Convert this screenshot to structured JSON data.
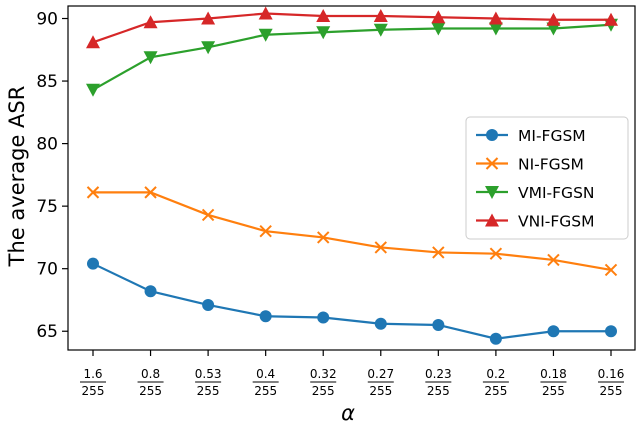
{
  "chart_data": {
    "type": "line",
    "xlabel": "α",
    "ylabel": "The average ASR",
    "categories": [
      {
        "num": "1.6",
        "den": "255"
      },
      {
        "num": "0.8",
        "den": "255"
      },
      {
        "num": "0.53",
        "den": "255"
      },
      {
        "num": "0.4",
        "den": "255"
      },
      {
        "num": "0.32",
        "den": "255"
      },
      {
        "num": "0.27",
        "den": "255"
      },
      {
        "num": "0.23",
        "den": "255"
      },
      {
        "num": "0.2",
        "den": "255"
      },
      {
        "num": "0.18",
        "den": "255"
      },
      {
        "num": "0.16",
        "den": "255"
      }
    ],
    "ylim": [
      63.5,
      91.0
    ],
    "yticks": [
      65,
      70,
      75,
      80,
      85,
      90
    ],
    "grid": false,
    "legend_position": "center-right",
    "series": [
      {
        "name": "MI-FGSM",
        "color": "#1f77b4",
        "marker": "circle",
        "values": [
          70.4,
          68.2,
          67.1,
          66.2,
          66.1,
          65.6,
          65.5,
          64.4,
          65.0,
          65.0
        ]
      },
      {
        "name": "NI-FGSM",
        "color": "#ff7f0e",
        "marker": "x",
        "values": [
          76.1,
          76.1,
          74.3,
          73.0,
          72.5,
          71.7,
          71.3,
          71.2,
          70.7,
          69.9
        ]
      },
      {
        "name": "VMI-FGSN",
        "color": "#2ca02c",
        "marker": "triangle-down",
        "values": [
          84.3,
          86.9,
          87.7,
          88.7,
          88.9,
          89.1,
          89.2,
          89.2,
          89.2,
          89.5
        ]
      },
      {
        "name": "VNI-FGSM",
        "color": "#d62728",
        "marker": "triangle-up",
        "values": [
          88.1,
          89.7,
          90.0,
          90.4,
          90.2,
          90.2,
          90.1,
          90.0,
          89.9,
          89.9
        ]
      }
    ]
  }
}
